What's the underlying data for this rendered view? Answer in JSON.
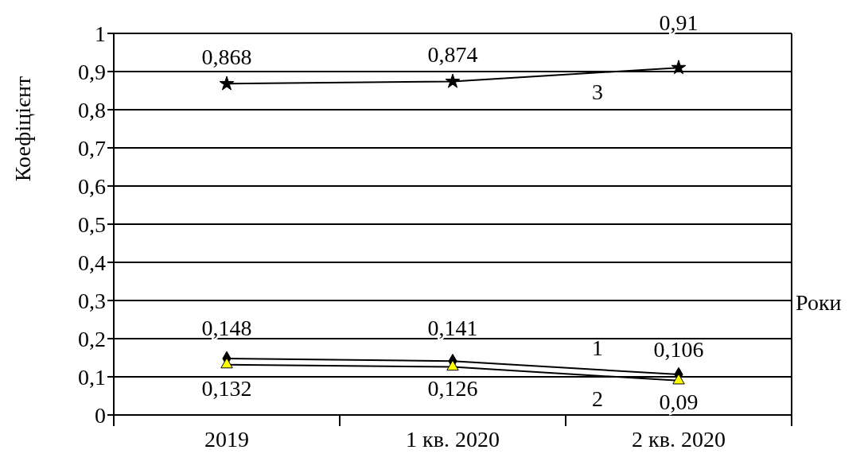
{
  "chart_data": {
    "type": "line",
    "ylabel": "Коефіцієнт",
    "xlabel": "Роки",
    "categories": [
      "2019",
      "1 кв. 2020",
      "2 кв. 2020"
    ],
    "series": [
      {
        "name": "1",
        "color": "#000000",
        "marker": "diamond",
        "values": [
          0.148,
          0.141,
          0.106
        ],
        "value_labels": [
          "0,148",
          "0,141",
          "0,106"
        ]
      },
      {
        "name": "2",
        "color": "#ffff00",
        "marker": "triangle",
        "values": [
          0.132,
          0.126,
          0.09
        ],
        "value_labels": [
          "0,132",
          "0,126",
          "0,09"
        ]
      },
      {
        "name": "3",
        "color": "#000000",
        "marker": "star",
        "values": [
          0.868,
          0.874,
          0.91
        ],
        "value_labels": [
          "0,868",
          "0,874",
          "0,91"
        ]
      }
    ],
    "ylim": [
      0,
      1
    ],
    "yticks": [
      {
        "value": 0,
        "label": "0"
      },
      {
        "value": 0.1,
        "label": "0,1"
      },
      {
        "value": 0.2,
        "label": "0,2"
      },
      {
        "value": 0.3,
        "label": "0,3"
      },
      {
        "value": 0.4,
        "label": "0,4"
      },
      {
        "value": 0.5,
        "label": "0,5"
      },
      {
        "value": 0.6,
        "label": "0,6"
      },
      {
        "value": 0.7,
        "label": "0,7"
      },
      {
        "value": 0.8,
        "label": "0,8"
      },
      {
        "value": 0.9,
        "label": "0,9"
      },
      {
        "value": 1,
        "label": "1"
      }
    ],
    "grid": "y",
    "line_style": "solid"
  }
}
